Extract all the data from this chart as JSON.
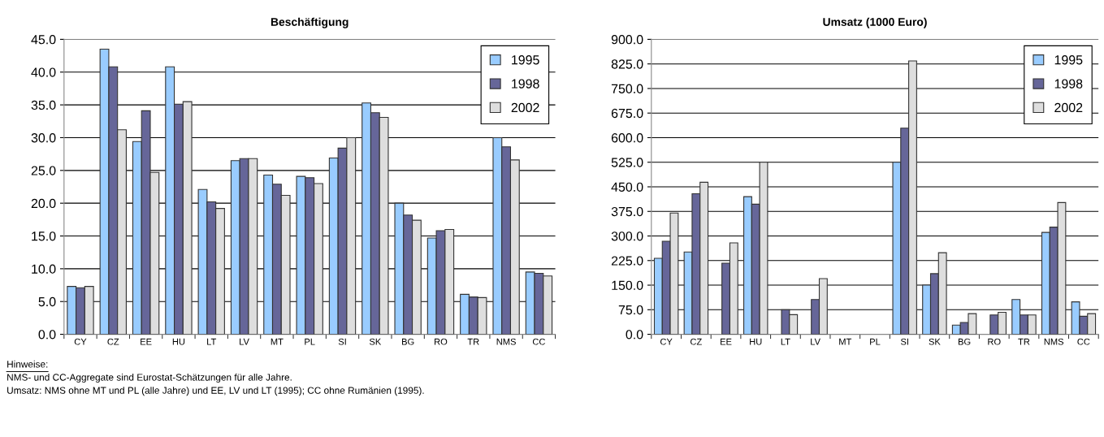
{
  "chart_data": [
    {
      "type": "bar",
      "title": "Beschäftigung",
      "categories": [
        "CY",
        "CZ",
        "EE",
        "HU",
        "LT",
        "LV",
        "MT",
        "PL",
        "SI",
        "SK",
        "BG",
        "RO",
        "TR",
        "NMS",
        "CC"
      ],
      "series": [
        {
          "name": "1995",
          "color": "#99ccff",
          "values": [
            7.3,
            43.5,
            29.4,
            40.8,
            22.1,
            26.5,
            24.3,
            24.1,
            26.9,
            35.3,
            20.0,
            14.7,
            6.1,
            30.0,
            9.5
          ]
        },
        {
          "name": "1998",
          "color": "#666699",
          "values": [
            7.1,
            40.8,
            34.1,
            35.1,
            20.2,
            26.8,
            22.9,
            23.9,
            28.4,
            33.8,
            18.2,
            15.8,
            5.7,
            28.6,
            9.3
          ]
        },
        {
          "name": "2002",
          "color": "#dedede",
          "values": [
            7.3,
            31.2,
            24.7,
            35.5,
            19.2,
            26.8,
            21.2,
            23.0,
            30.0,
            33.1,
            17.4,
            16.0,
            5.6,
            26.6,
            8.9
          ]
        }
      ],
      "ylim": [
        0,
        45
      ],
      "yticks": [
        {
          "value": 0,
          "label": "0.0"
        },
        {
          "value": 5,
          "label": "5.0"
        },
        {
          "value": 10,
          "label": "10.0"
        },
        {
          "value": 15,
          "label": "15.0"
        },
        {
          "value": 20,
          "label": "20.0"
        },
        {
          "value": 25,
          "label": "25.0"
        },
        {
          "value": 30,
          "label": "30.0"
        },
        {
          "value": 35,
          "label": "35.0"
        },
        {
          "value": 40,
          "label": "40.0"
        },
        {
          "value": 45,
          "label": "45.0"
        }
      ],
      "grid": "y",
      "legend": "top right",
      "annotations": [
        "Hinweise:",
        "NMS- und CC-Aggregate sind Eurostat-Schätzungen für alle Jahre.",
        "Umsatz: NMS ohne MT und PL (alle Jahre) und EE, LV und LT (1995); CC ohne Rumänien (1995)."
      ]
    },
    {
      "type": "bar",
      "title": "Umsatz (1000 Euro)",
      "categories": [
        "CY",
        "CZ",
        "EE",
        "HU",
        "LT",
        "LV",
        "MT",
        "PL",
        "SI",
        "SK",
        "BG",
        "RO",
        "TR",
        "NMS",
        "CC"
      ],
      "series": [
        {
          "name": "1995",
          "color": "#99ccff",
          "values": [
            232,
            251,
            null,
            420,
            null,
            null,
            null,
            null,
            525,
            150,
            28,
            null,
            106,
            311,
            99
          ]
        },
        {
          "name": "1998",
          "color": "#666699",
          "values": [
            284,
            429,
            217,
            397,
            75,
            106,
            null,
            null,
            629,
            185,
            36,
            59,
            59,
            327,
            55
          ]
        },
        {
          "name": "2002",
          "color": "#dedede",
          "values": [
            370,
            464,
            279,
            525,
            60,
            170,
            null,
            null,
            834,
            249,
            63,
            67,
            59,
            402,
            63
          ]
        }
      ],
      "ylim": [
        0,
        900
      ],
      "yticks": [
        {
          "value": 0,
          "label": "0.0"
        },
        {
          "value": 75,
          "label": "75.0"
        },
        {
          "value": 150,
          "label": "150.0"
        },
        {
          "value": 225,
          "label": "225.0"
        },
        {
          "value": 300,
          "label": "300.0"
        },
        {
          "value": 375,
          "label": "375.0"
        },
        {
          "value": 450,
          "label": "450.0"
        },
        {
          "value": 525,
          "label": "525.0"
        },
        {
          "value": 600,
          "label": "600.0"
        },
        {
          "value": 675,
          "label": "675.0"
        },
        {
          "value": 750,
          "label": "750.0"
        },
        {
          "value": 825,
          "label": "825.0"
        },
        {
          "value": 900,
          "label": "900.0"
        }
      ],
      "grid": "y",
      "legend": "top right"
    }
  ]
}
